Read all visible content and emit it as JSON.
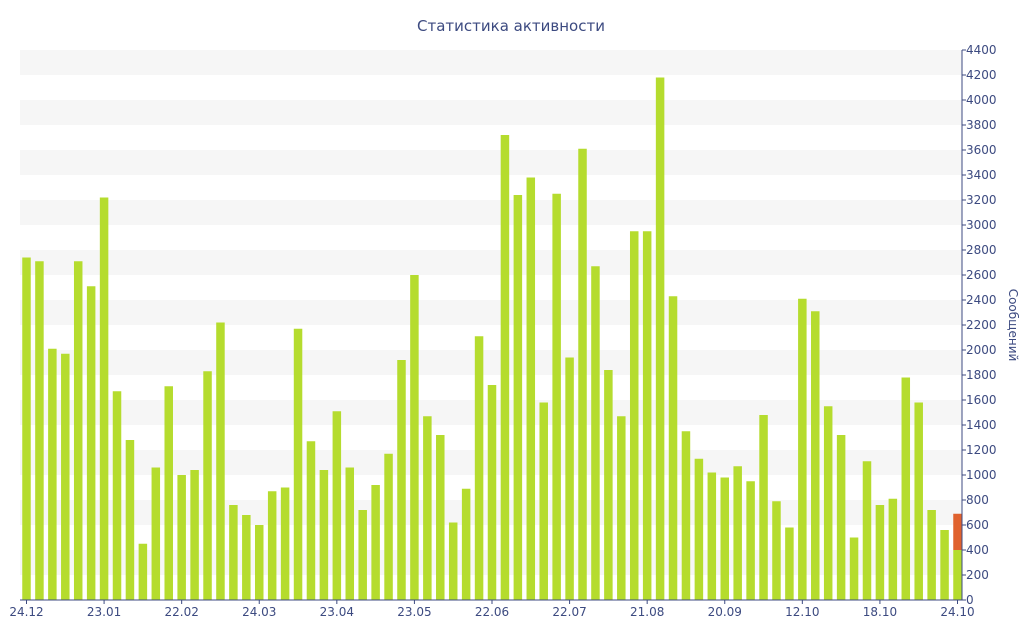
{
  "chart_data": {
    "type": "bar",
    "title": "Статистика активности",
    "xlabel": "",
    "ylabel": "Сообщений",
    "ylim": [
      0,
      4400
    ],
    "yticks": [
      0,
      200,
      400,
      600,
      800,
      1000,
      1200,
      1400,
      1600,
      1800,
      2000,
      2200,
      2400,
      2600,
      2800,
      3000,
      3200,
      3400,
      3600,
      3800,
      4000,
      4200,
      4400
    ],
    "y_axis_position": "right",
    "grid": "alternating-horizontal-bands",
    "legend": "none",
    "colors": {
      "bar": "#b5dc2e",
      "highlight": "#e0622e",
      "text": "#3c4a80",
      "band": "#f6f6f6"
    },
    "x_tick_labels": [
      {
        "label": "24.12",
        "bar_index": 0
      },
      {
        "label": "23.01",
        "bar_index": 6
      },
      {
        "label": "22.02",
        "bar_index": 12
      },
      {
        "label": "24.03",
        "bar_index": 18
      },
      {
        "label": "23.04",
        "bar_index": 24
      },
      {
        "label": "23.05",
        "bar_index": 30
      },
      {
        "label": "22.06",
        "bar_index": 36
      },
      {
        "label": "22.07",
        "bar_index": 42
      },
      {
        "label": "21.08",
        "bar_index": 48
      },
      {
        "label": "20.09",
        "bar_index": 54
      },
      {
        "label": "12.10",
        "bar_index": 60
      },
      {
        "label": "18.10",
        "bar_index": 66
      },
      {
        "label": "24.10",
        "bar_index": 72
      }
    ],
    "values": [
      2740,
      2710,
      2010,
      1970,
      2710,
      2510,
      3220,
      1670,
      1280,
      450,
      1060,
      1710,
      1000,
      1040,
      1830,
      2220,
      760,
      680,
      600,
      870,
      900,
      2170,
      1270,
      1040,
      1510,
      1060,
      720,
      920,
      1170,
      1920,
      2600,
      1470,
      1320,
      620,
      890,
      2110,
      1720,
      3720,
      3240,
      3380,
      1580,
      3250,
      1940,
      3610,
      2670,
      1840,
      1470,
      2950,
      2950,
      4180,
      2430,
      1350,
      1130,
      1020,
      980,
      1070,
      950,
      1480,
      790,
      580,
      2410,
      2310,
      1550,
      1320,
      500,
      1110,
      760,
      810,
      1780,
      1580,
      720,
      560,
      400
    ],
    "highlight": {
      "bar_index": 72,
      "base": 400,
      "top": 690
    }
  }
}
